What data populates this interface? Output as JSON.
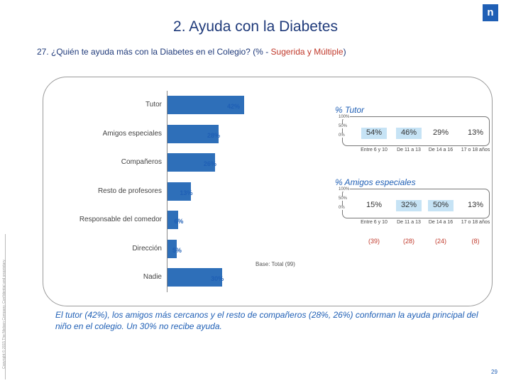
{
  "title": "2. Ayuda con la Diabetes",
  "subtitle": {
    "main": "27. ¿Quién te ayuda más con la Diabetes en el Colegio? ",
    "note_open": "(% - ",
    "note_highlight": "Sugerida y Múltiple",
    "note_close": ")"
  },
  "logo_text": "n",
  "chart_data": [
    {
      "type": "bar",
      "orientation": "horizontal",
      "categories": [
        "Tutor",
        "Amigos especiales",
        "Compañeros",
        "Resto de profesores",
        "Responsable del comedor",
        "Dirección",
        "Nadie"
      ],
      "values": [
        42,
        28,
        26,
        13,
        6,
        5,
        30
      ],
      "value_labels": [
        "42%",
        "28%",
        "26%",
        "13%",
        "6%",
        "5%",
        "30%"
      ],
      "xlim": [
        0,
        45
      ],
      "color": "#2e6fb9",
      "base_label": "Base: Total (99)"
    },
    {
      "type": "bar",
      "title": "% Tutor",
      "ticks": [
        "100%",
        "50%",
        "0%"
      ],
      "categories": [
        "Entre 6 y 10",
        "De 11 a 13",
        "De 14 a 16",
        "17 o 18 años"
      ],
      "values": [
        54,
        46,
        29,
        13
      ],
      "value_labels": [
        "54%",
        "46%",
        "29%",
        "13%"
      ],
      "highlight": [
        true,
        true,
        false,
        false
      ],
      "color": "#c6e3f5"
    },
    {
      "type": "bar",
      "title": "% Amigos especiales",
      "ticks": [
        "100%",
        "50%",
        "0%"
      ],
      "categories": [
        "Entre 6 y 10",
        "De 11 a 13",
        "De 14 a 16",
        "17 o 18 años"
      ],
      "values": [
        15,
        32,
        50,
        13
      ],
      "value_labels": [
        "15%",
        "32%",
        "50%",
        "13%"
      ],
      "highlight": [
        false,
        true,
        true,
        false
      ],
      "bases": [
        "(39)",
        "(28)",
        "(24)",
        "(8)"
      ],
      "color": "#c6e3f5"
    }
  ],
  "conclusion": "El tutor (42%), los amigos más cercanos y el resto de compañeros (28%, 26%) conforman la ayuda principal del niño en el colegio. Un 30% no recibe ayuda.",
  "copyright": "Copyright © 2015 The Nielsen Company. Confidential and proprietary.",
  "page_number": "29"
}
